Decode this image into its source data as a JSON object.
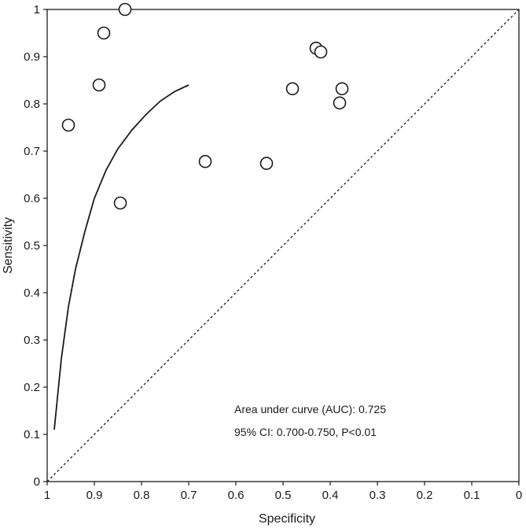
{
  "chart_data": {
    "type": "scatter",
    "title": "",
    "xlabel": "Specificity",
    "ylabel": "Sensitivity",
    "xlim": [
      1,
      0
    ],
    "ylim": [
      0,
      1
    ],
    "x_reversed": true,
    "xticks": [
      {
        "value": 1,
        "label": "1"
      },
      {
        "value": 0.9,
        "label": "0.9"
      },
      {
        "value": 0.8,
        "label": "0.8"
      },
      {
        "value": 0.7,
        "label": "0.7"
      },
      {
        "value": 0.6,
        "label": "0.6"
      },
      {
        "value": 0.5,
        "label": "0.5"
      },
      {
        "value": 0.4,
        "label": "0.4"
      },
      {
        "value": 0.3,
        "label": "0.3"
      },
      {
        "value": 0.2,
        "label": "0.2"
      },
      {
        "value": 0.1,
        "label": "0.1"
      },
      {
        "value": 0,
        "label": "0"
      }
    ],
    "yticks": [
      {
        "value": 0,
        "label": "0"
      },
      {
        "value": 0.1,
        "label": "0.1"
      },
      {
        "value": 0.2,
        "label": "0.2"
      },
      {
        "value": 0.3,
        "label": "0.3"
      },
      {
        "value": 0.4,
        "label": "0.4"
      },
      {
        "value": 0.5,
        "label": "0.5"
      },
      {
        "value": 0.6,
        "label": "0.6"
      },
      {
        "value": 0.7,
        "label": "0.7"
      },
      {
        "value": 0.8,
        "label": "0.8"
      },
      {
        "value": 0.9,
        "label": "0.9"
      },
      {
        "value": 1,
        "label": "1"
      }
    ],
    "grid": false,
    "points": [
      {
        "x": 0.835,
        "y": 1.0
      },
      {
        "x": 0.88,
        "y": 0.95
      },
      {
        "x": 0.89,
        "y": 0.84
      },
      {
        "x": 0.955,
        "y": 0.755
      },
      {
        "x": 0.845,
        "y": 0.59
      },
      {
        "x": 0.665,
        "y": 0.678
      },
      {
        "x": 0.535,
        "y": 0.674
      },
      {
        "x": 0.48,
        "y": 0.832
      },
      {
        "x": 0.43,
        "y": 0.918
      },
      {
        "x": 0.42,
        "y": 0.91
      },
      {
        "x": 0.375,
        "y": 0.832
      },
      {
        "x": 0.38,
        "y": 0.802
      }
    ],
    "summary_curve": {
      "style": "solid",
      "x": [
        0.985,
        0.97,
        0.955,
        0.94,
        0.92,
        0.9,
        0.875,
        0.85,
        0.82,
        0.79,
        0.76,
        0.73,
        0.7
      ],
      "y": [
        0.11,
        0.26,
        0.37,
        0.45,
        0.53,
        0.6,
        0.66,
        0.705,
        0.745,
        0.778,
        0.806,
        0.826,
        0.84
      ]
    },
    "reference_line": {
      "style": "dashed",
      "from": [
        1,
        0
      ],
      "to": [
        0,
        1
      ]
    },
    "annotations": [
      "Area under curve (AUC): 0.725",
      "95% CI: 0.700-0.750, P<0.01"
    ]
  }
}
